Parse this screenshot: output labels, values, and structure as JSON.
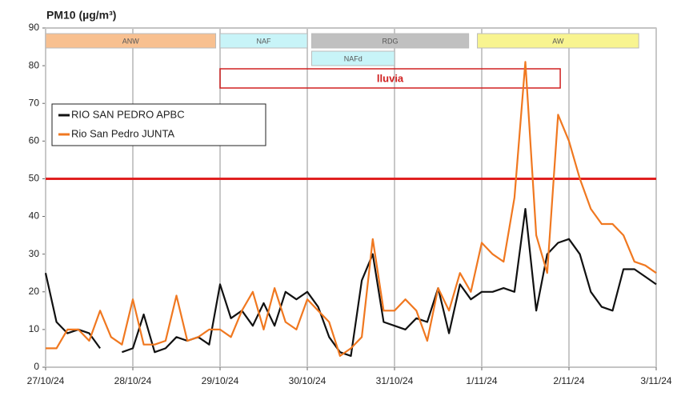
{
  "chart_data": {
    "type": "line",
    "title": "PM10 (µg/m³)",
    "x": [
      0,
      0.125,
      0.25,
      0.375,
      0.5,
      0.625,
      0.75,
      0.875,
      1,
      1.125,
      1.25,
      1.375,
      1.5,
      1.625,
      1.75,
      1.875,
      2,
      2.125,
      2.25,
      2.375,
      2.5,
      2.625,
      2.75,
      2.875,
      3,
      3.125,
      3.25,
      3.375,
      3.5,
      3.625,
      3.75,
      3.875,
      4,
      4.125,
      4.25,
      4.375,
      4.5,
      4.625,
      4.75,
      4.875,
      5,
      5.125,
      5.25,
      5.375,
      5.5,
      5.625,
      5.75,
      5.875,
      6,
      6.125,
      6.25,
      6.375,
      6.5,
      6.625,
      6.75,
      6.875,
      7
    ],
    "series": [
      {
        "name": "RIO SAN PEDRO APBC",
        "color": "#111111",
        "values": [
          25,
          12,
          9,
          10,
          9,
          5,
          null,
          4,
          5,
          14,
          4,
          5,
          8,
          7,
          8,
          6,
          22,
          13,
          15,
          11,
          17,
          11,
          20,
          18,
          20,
          16,
          8,
          4,
          3,
          23,
          30,
          12,
          11,
          10,
          13,
          12,
          21,
          9,
          22,
          18,
          20,
          20,
          21,
          20,
          42,
          15,
          30,
          33,
          34,
          30,
          20,
          16,
          15,
          26,
          26,
          24,
          22
        ]
      },
      {
        "name": "Rio San Pedro JUNTA",
        "color": "#f07820",
        "values": [
          5,
          5,
          10,
          10,
          7,
          15,
          8,
          6,
          18,
          6,
          6,
          7,
          19,
          7,
          8,
          10,
          10,
          8,
          15,
          20,
          10,
          21,
          12,
          10,
          18,
          15,
          12,
          3,
          5,
          8,
          34,
          15,
          15,
          18,
          15,
          7,
          21,
          15,
          25,
          20,
          33,
          30,
          28,
          45,
          81,
          35,
          25,
          67,
          60,
          50,
          42,
          38,
          38,
          35,
          28,
          27,
          25
        ]
      }
    ],
    "xlim": [
      0,
      7
    ],
    "xticks": [
      {
        "value": 0,
        "label": "27/10/24"
      },
      {
        "value": 1,
        "label": "28/10/24"
      },
      {
        "value": 2,
        "label": "29/10/24"
      },
      {
        "value": 3,
        "label": "30/10/24"
      },
      {
        "value": 4,
        "label": "31/10/24"
      },
      {
        "value": 5,
        "label": "1/11/24"
      },
      {
        "value": 6,
        "label": "2/11/24"
      },
      {
        "value": 7,
        "label": "3/11/24"
      }
    ],
    "ylim": [
      0,
      90
    ],
    "yticks": [
      0,
      10,
      20,
      30,
      40,
      50,
      60,
      70,
      80,
      90
    ],
    "grid": true,
    "legend": "upper left",
    "threshold": {
      "value": 50,
      "color": "#e02020"
    },
    "annotations": [
      {
        "text": "ANW",
        "x0": 0,
        "x1": 1.95,
        "row": 0,
        "color": "#f8c090"
      },
      {
        "text": "NAF",
        "x0": 2,
        "x1": 3,
        "row": 0,
        "color": "#c8f4f8"
      },
      {
        "text": "RDG",
        "x0": 3.05,
        "x1": 4.85,
        "row": 0,
        "color": "#c0c0c0"
      },
      {
        "text": "AW",
        "x0": 4.95,
        "x1": 6.8,
        "row": 0,
        "color": "#f8f490"
      },
      {
        "text": "NAFd",
        "x0": 3.05,
        "x1": 4,
        "row": 1,
        "color": "#c8f4f8"
      },
      {
        "text": "lluvia",
        "x0": 2,
        "x1": 5.9,
        "row": 2,
        "color": "#d02020"
      }
    ]
  }
}
